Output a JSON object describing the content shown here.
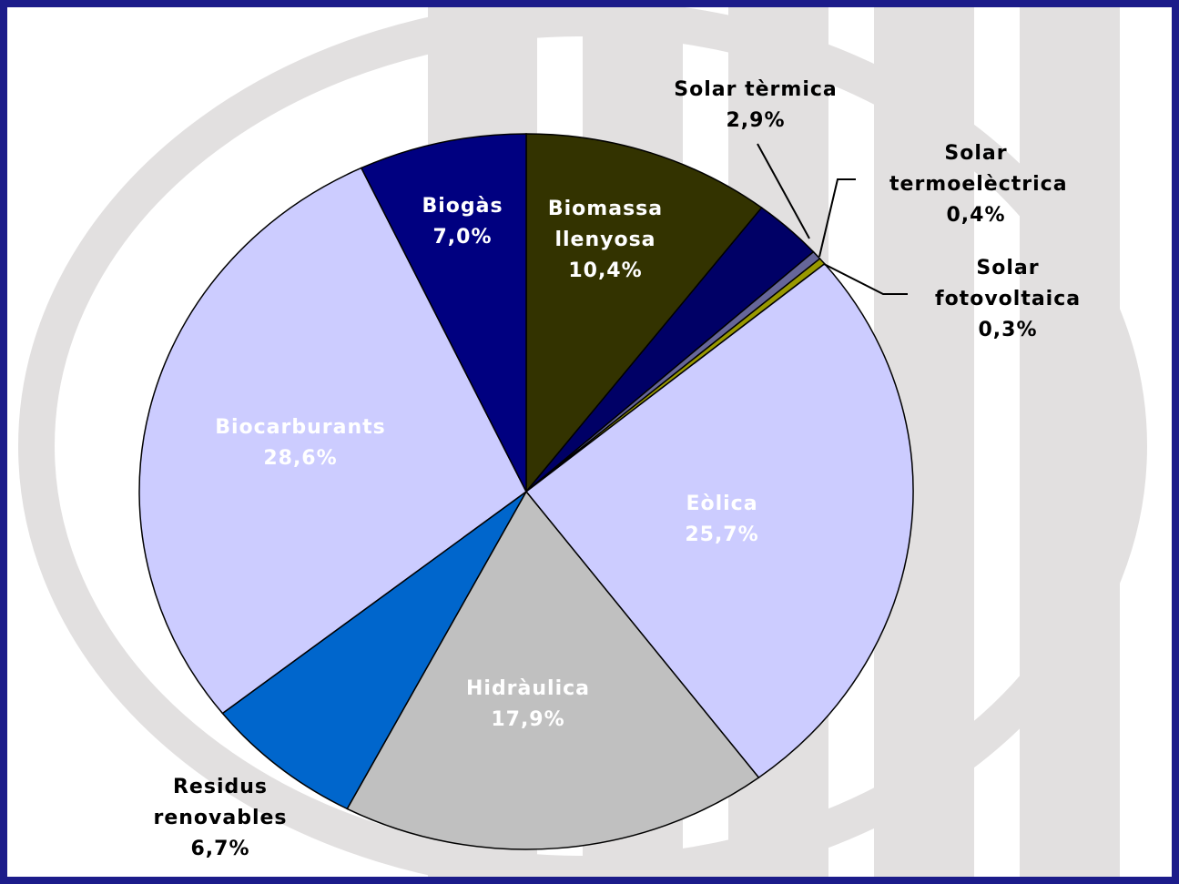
{
  "chart_data": {
    "type": "pie",
    "categories": [
      "Biomassa llenyosa",
      "Solar tèrmica",
      "Solar termoelèctrica",
      "Solar fotovoltaica",
      "Eòlica",
      "Hidràulica",
      "Residus renovables",
      "Biocarburants",
      "Biogàs"
    ],
    "values": [
      10.4,
      2.9,
      0.4,
      0.3,
      25.7,
      17.9,
      6.7,
      28.6,
      7.0
    ],
    "value_labels": [
      "10,4%",
      "2,9%",
      "0,4%",
      "0,3%",
      "25,7%",
      "17,9%",
      "6,7%",
      "28,6%",
      "7,0%"
    ],
    "colors": [
      "#333300",
      "#000066",
      "#666699",
      "#999900",
      "#ccccff",
      "#c0c0c0",
      "#0066cc",
      "#ccccff",
      "#000080"
    ]
  }
}
